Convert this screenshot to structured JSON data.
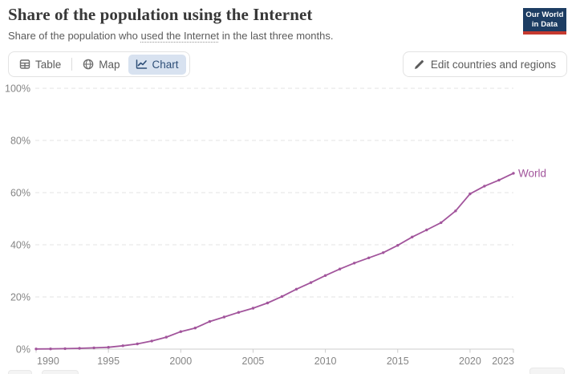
{
  "header": {
    "title": "Share of the population using the Internet",
    "subtitle": {
      "prefix": "Share of the population who ",
      "linked_text": "used the Internet",
      "suffix": " in the last three months."
    },
    "logo": {
      "line1": "Our World",
      "line2": "in Data"
    }
  },
  "toolbar": {
    "tabs": [
      {
        "id": "table",
        "label": "Table",
        "active": false
      },
      {
        "id": "map",
        "label": "Map",
        "active": false
      },
      {
        "id": "chart",
        "label": "Chart",
        "active": true
      }
    ],
    "edit_button": "Edit countries and regions"
  },
  "chart_data": {
    "type": "line",
    "title": "Share of the population using the Internet",
    "xlabel": "",
    "ylabel": "",
    "ylim": [
      0,
      100
    ],
    "y_ticks": [
      0,
      20,
      40,
      60,
      80,
      100
    ],
    "y_tick_suffix": "%",
    "x_ticks": [
      1990,
      1995,
      2000,
      2005,
      2010,
      2015,
      2020,
      2023
    ],
    "x_range": [
      1990,
      2023
    ],
    "grid": "horizontal-dashed",
    "legend_position": "end-of-line",
    "series": [
      {
        "name": "World",
        "color": "#a2559c",
        "x": [
          1990,
          1991,
          1992,
          1993,
          1994,
          1995,
          1996,
          1997,
          1998,
          1999,
          2000,
          2001,
          2002,
          2003,
          2004,
          2005,
          2006,
          2007,
          2008,
          2009,
          2010,
          2011,
          2012,
          2013,
          2014,
          2015,
          2016,
          2017,
          2018,
          2019,
          2020,
          2021,
          2022,
          2023
        ],
        "values": [
          0.05,
          0.1,
          0.2,
          0.3,
          0.5,
          0.7,
          1.3,
          2.0,
          3.1,
          4.6,
          6.7,
          8.1,
          10.6,
          12.3,
          14.1,
          15.7,
          17.7,
          20.2,
          23.0,
          25.5,
          28.2,
          30.7,
          33.0,
          35.0,
          37.0,
          39.8,
          43.0,
          45.7,
          48.5,
          53.0,
          59.5,
          62.5,
          64.8,
          67.4
        ]
      }
    ]
  },
  "colors": {
    "axis_text": "#858585",
    "grid_line": "#e3e3e3",
    "axis_line": "#cccccc",
    "accent_purple": "#a2559c"
  }
}
